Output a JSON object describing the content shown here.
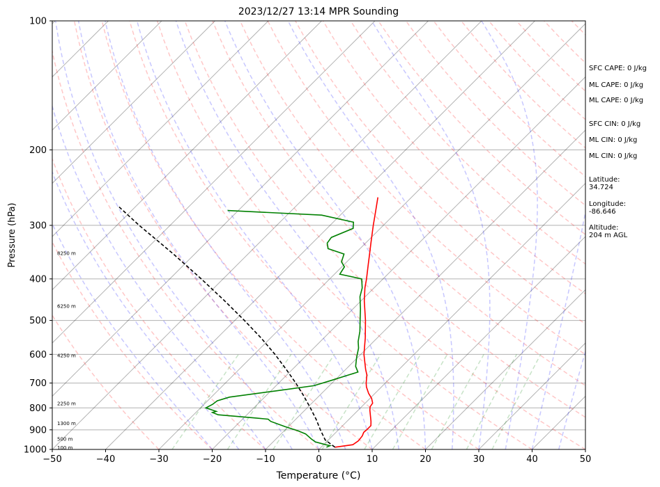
{
  "chart_data": {
    "type": "line",
    "subtype": "skew-t log-p sounding",
    "title": "2023/12/27 13:14 MPR Sounding",
    "xlabel": "Temperature (°C)",
    "ylabel": "Pressure (hPa)",
    "xlim": [
      -50,
      50
    ],
    "ylim": [
      1000,
      100
    ],
    "y_scale": "log",
    "x_ticks": [
      -50,
      -40,
      -30,
      -20,
      -10,
      0,
      10,
      20,
      30,
      40,
      50
    ],
    "x_tick_labels": [
      "−50",
      "−40",
      "−30",
      "−20",
      "−10",
      "0",
      "10",
      "20",
      "30",
      "40",
      "50"
    ],
    "y_ticks": [
      100,
      200,
      300,
      400,
      500,
      600,
      700,
      800,
      900,
      1000
    ],
    "y_tick_labels": [
      "100",
      "200",
      "300",
      "400",
      "500",
      "600",
      "700",
      "800",
      "900",
      "1000"
    ],
    "grid": true,
    "series": [
      {
        "key": "temperature",
        "color": "#ff0000",
        "points": [
          {
            "p": 988,
            "t": 2.6
          },
          {
            "p": 975,
            "t": 5.5
          },
          {
            "p": 955,
            "t": 5.8
          },
          {
            "p": 930,
            "t": 5.6
          },
          {
            "p": 912,
            "t": 5.2
          },
          {
            "p": 900,
            "t": 5.3
          },
          {
            "p": 880,
            "t": 5.3
          },
          {
            "p": 860,
            "t": 4.5
          },
          {
            "p": 840,
            "t": 3.6
          },
          {
            "p": 810,
            "t": 2.2
          },
          {
            "p": 795,
            "t": 1.6
          },
          {
            "p": 780,
            "t": 1.4
          },
          {
            "p": 760,
            "t": 0.3
          },
          {
            "p": 740,
            "t": -1.2
          },
          {
            "p": 715,
            "t": -2.8
          },
          {
            "p": 700,
            "t": -3.6
          },
          {
            "p": 670,
            "t": -5.0
          },
          {
            "p": 650,
            "t": -6.3
          },
          {
            "p": 600,
            "t": -9.4
          },
          {
            "p": 550,
            "t": -12.2
          },
          {
            "p": 500,
            "t": -15.5
          },
          {
            "p": 450,
            "t": -19.4
          },
          {
            "p": 420,
            "t": -21.7
          },
          {
            "p": 400,
            "t": -23.1
          },
          {
            "p": 370,
            "t": -25.5
          },
          {
            "p": 350,
            "t": -27.2
          },
          {
            "p": 330,
            "t": -29.0
          },
          {
            "p": 300,
            "t": -31.9
          },
          {
            "p": 280,
            "t": -33.9
          },
          {
            "p": 258,
            "t": -36.3
          }
        ]
      },
      {
        "key": "dewpoint",
        "color": "#008000",
        "points": [
          {
            "p": 988,
            "t": 1.0
          },
          {
            "p": 980,
            "t": 1.4
          },
          {
            "p": 975,
            "t": 0.4
          },
          {
            "p": 960,
            "t": -2.1
          },
          {
            "p": 945,
            "t": -3.4
          },
          {
            "p": 920,
            "t": -5.4
          },
          {
            "p": 905,
            "t": -7.4
          },
          {
            "p": 885,
            "t": -10.6
          },
          {
            "p": 860,
            "t": -14.3
          },
          {
            "p": 850,
            "t": -15.2
          },
          {
            "p": 845,
            "t": -17.6
          },
          {
            "p": 830,
            "t": -25.4
          },
          {
            "p": 820,
            "t": -26.9
          },
          {
            "p": 815,
            "t": -26.4
          },
          {
            "p": 800,
            "t": -29.0
          },
          {
            "p": 785,
            "t": -28.4
          },
          {
            "p": 770,
            "t": -28.2
          },
          {
            "p": 755,
            "t": -26.6
          },
          {
            "p": 730,
            "t": -19.0
          },
          {
            "p": 710,
            "t": -12.9
          },
          {
            "p": 690,
            "t": -10.6
          },
          {
            "p": 670,
            "t": -8.4
          },
          {
            "p": 660,
            "t": -7.2
          },
          {
            "p": 640,
            "t": -8.7
          },
          {
            "p": 610,
            "t": -10.2
          },
          {
            "p": 580,
            "t": -11.6
          },
          {
            "p": 560,
            "t": -12.9
          },
          {
            "p": 530,
            "t": -14.5
          },
          {
            "p": 500,
            "t": -16.5
          },
          {
            "p": 470,
            "t": -18.6
          },
          {
            "p": 440,
            "t": -21.0
          },
          {
            "p": 420,
            "t": -22.2
          },
          {
            "p": 400,
            "t": -24.0
          },
          {
            "p": 390,
            "t": -29.0
          },
          {
            "p": 375,
            "t": -29.5
          },
          {
            "p": 365,
            "t": -31.0
          },
          {
            "p": 350,
            "t": -32.0
          },
          {
            "p": 340,
            "t": -36.0
          },
          {
            "p": 330,
            "t": -37.2
          },
          {
            "p": 320,
            "t": -37.5
          },
          {
            "p": 305,
            "t": -35.1
          },
          {
            "p": 295,
            "t": -36.2
          },
          {
            "p": 284,
            "t": -43.5
          },
          {
            "p": 277,
            "t": -62.0
          }
        ]
      },
      {
        "key": "parcel",
        "color": "#000000",
        "dashed": true,
        "points": [
          {
            "p": 988,
            "t": 2.6
          },
          {
            "p": 950,
            "t": -0.6
          },
          {
            "p": 900,
            "t": -3.4
          },
          {
            "p": 850,
            "t": -6.2
          },
          {
            "p": 800,
            "t": -9.4
          },
          {
            "p": 750,
            "t": -12.9
          },
          {
            "p": 700,
            "t": -16.8
          },
          {
            "p": 650,
            "t": -21.2
          },
          {
            "p": 600,
            "t": -26.1
          },
          {
            "p": 550,
            "t": -31.7
          },
          {
            "p": 500,
            "t": -38.2
          },
          {
            "p": 450,
            "t": -45.6
          },
          {
            "p": 400,
            "t": -54.1
          },
          {
            "p": 350,
            "t": -64.0
          },
          {
            "p": 300,
            "t": -75.8
          },
          {
            "p": 270,
            "t": -83.5
          }
        ]
      }
    ],
    "height_labels": [
      {
        "p": 989,
        "text": "100 m"
      },
      {
        "p": 943,
        "text": "500 m"
      },
      {
        "p": 868,
        "text": "1300 m"
      },
      {
        "p": 780,
        "text": "2250 m"
      },
      {
        "p": 603,
        "text": "4250 m"
      },
      {
        "p": 462,
        "text": "6250 m"
      },
      {
        "p": 348,
        "text": "8250 m"
      }
    ],
    "side_text": [
      "SFC CAPE: 0 J/kg",
      "ML CAPE: 0 J/kg",
      "ML CAPE: 0 J/kg",
      "SFC CIN: 0 J/kg",
      "ML CIN: 0 J/kg",
      "ML CIN: 0 J/kg",
      "Latitude:\n34.724",
      "Longitude:\n-86.646",
      "Altitude:\n204 m AGL"
    ],
    "colors": {
      "isotherm": "#000000",
      "dry_adiabat": "#ff0000",
      "moist_adiabat": "#0000ff",
      "mixing_ratio": "#008000"
    }
  }
}
